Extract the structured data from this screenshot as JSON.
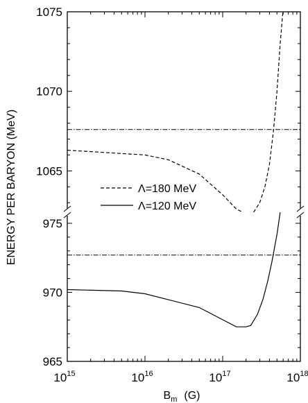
{
  "chart_data": {
    "type": "line",
    "title": "",
    "xlabel_main": "B",
    "xlabel_sub": "m",
    "xlabel_unit": "(G)",
    "ylabel": "ENERGY PER BARYON (MeV)",
    "x_scale": "log",
    "xlim": [
      1000000000000000.0,
      1e+18
    ],
    "x_ticks": [
      {
        "value": 1000000000000000.0,
        "base": "10",
        "exp": "15"
      },
      {
        "value": 1e+16,
        "base": "10",
        "exp": "16"
      },
      {
        "value": 1e+17,
        "base": "10",
        "exp": "17"
      },
      {
        "value": 1e+18,
        "base": "10",
        "exp": "18"
      }
    ],
    "broken_y_axis": true,
    "panels": [
      {
        "id": "upper",
        "ylim": [
          1062.4,
          1075
        ],
        "y_ticks": [
          "1065",
          "1070",
          "1075"
        ]
      },
      {
        "id": "lower",
        "ylim": [
          965,
          975.8
        ],
        "y_ticks": [
          "965",
          "970",
          "975"
        ]
      }
    ],
    "grid": false,
    "legend_position": "center-left",
    "series": [
      {
        "name": "Λ=180 MeV",
        "style": "dashed",
        "panel": "upper",
        "x": [
          1000000000000000.0,
          1e+16,
          2e+16,
          5e+16,
          1e+17,
          1.5e+17,
          2e+17,
          2.5e+17,
          3e+17,
          3.5e+17,
          4e+17,
          4.5e+17,
          5e+17,
          5.5e+17,
          6e+17
        ],
        "y": [
          1066.3,
          1066.0,
          1065.7,
          1064.8,
          1063.5,
          1062.6,
          1062.3,
          1062.4,
          1063.0,
          1064.0,
          1065.4,
          1067.5,
          1070.0,
          1073.0,
          1075.2
        ]
      },
      {
        "name": "Λ=120 MeV",
        "style": "solid",
        "panel": "lower",
        "x": [
          1000000000000000.0,
          5000000000000000.0,
          1e+16,
          5e+16,
          1.5e+17,
          2e+17,
          2.3e+17,
          2.8e+17,
          3.3e+17,
          3.8e+17,
          4.3e+17,
          5e+17,
          5.5e+17
        ],
        "y": [
          970.2,
          970.1,
          969.9,
          968.9,
          967.5,
          967.5,
          967.6,
          968.4,
          969.5,
          970.8,
          972.2,
          974.2,
          975.8
        ]
      },
      {
        "style": "dash-dot",
        "panel": "upper",
        "x": [
          1000000000000000.0,
          1e+18
        ],
        "y": [
          1067.6,
          1067.6
        ]
      },
      {
        "style": "dash-dot",
        "panel": "lower",
        "x": [
          1000000000000000.0,
          1e+18
        ],
        "y": [
          972.7,
          972.7
        ]
      }
    ]
  }
}
